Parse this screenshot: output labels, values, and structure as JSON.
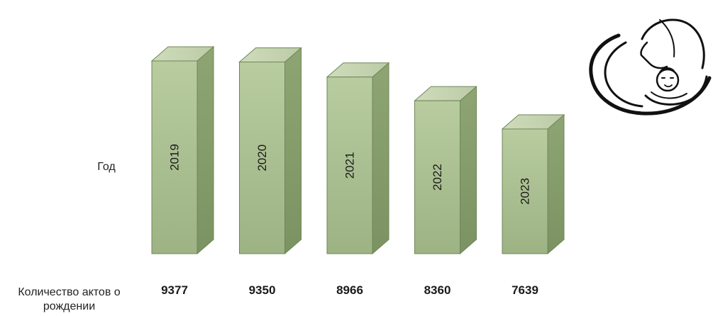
{
  "chart_data": {
    "type": "bar",
    "row_labels": {
      "year": "Год",
      "count": "Количество актов о рождении"
    },
    "categories": [
      "2019",
      "2020",
      "2021",
      "2022",
      "2023"
    ],
    "values": [
      9377,
      9350,
      8966,
      8360,
      7639
    ],
    "bar_style": "3d",
    "bar_color": "#a9c08f",
    "grid": false,
    "legend": "none"
  }
}
